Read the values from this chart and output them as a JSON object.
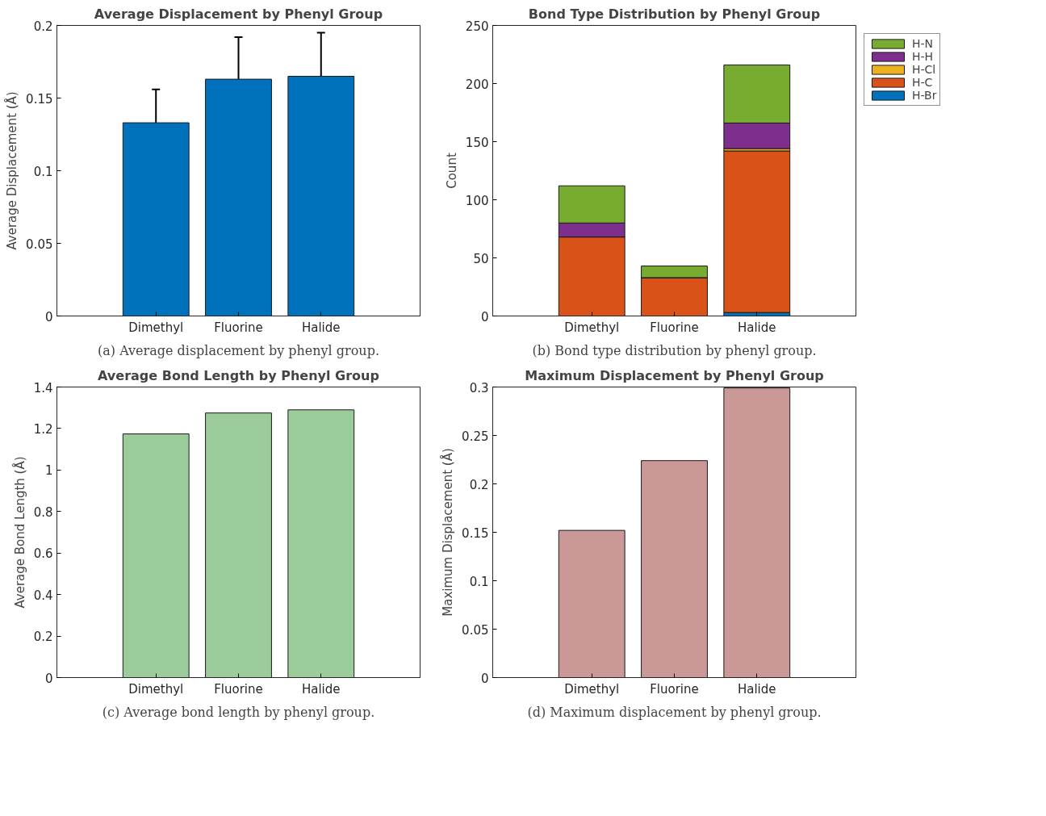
{
  "chart_data": [
    {
      "type": "bar",
      "title": "Average Displacement by Phenyl Group",
      "ylabel": "Average Displacement (Å)",
      "categories": [
        "Dimethyl",
        "Fluorine",
        "Halide"
      ],
      "values": [
        0.133,
        0.163,
        0.165
      ],
      "errors": [
        0.023,
        0.029,
        0.03
      ],
      "color": "#0072bd",
      "ylim": [
        0,
        0.2
      ],
      "yticks": [
        0,
        0.05,
        0.1,
        0.15,
        0.2
      ],
      "annotations": [
        "(a) Average displacement by phenyl group."
      ]
    },
    {
      "type": "bar",
      "title": "Bond Type Distribution by Phenyl Group",
      "ylabel": "Count",
      "categories": [
        "Dimethyl",
        "Fluorine",
        "Halide"
      ],
      "stacked": true,
      "legend": "top right",
      "series": [
        {
          "name": "H-Br",
          "color": "#0072bd",
          "values": [
            0,
            0,
            3
          ]
        },
        {
          "name": "H-C",
          "color": "#d95319",
          "values": [
            68,
            33,
            139
          ]
        },
        {
          "name": "H-Cl",
          "color": "#edb120",
          "values": [
            0,
            0,
            2
          ]
        },
        {
          "name": "H-H",
          "color": "#7e2f8e",
          "values": [
            12,
            0,
            22
          ]
        },
        {
          "name": "H-N",
          "color": "#77ac30",
          "values": [
            32,
            10,
            50
          ]
        }
      ],
      "ylim": [
        0,
        250
      ],
      "yticks": [
        0,
        50,
        100,
        150,
        200,
        250
      ],
      "annotations": [
        "(b) Bond type distribution by phenyl group."
      ]
    },
    {
      "type": "bar",
      "title": "Average Bond Length by Phenyl Group",
      "ylabel": "Average Bond Length (Å)",
      "categories": [
        "Dimethyl",
        "Fluorine",
        "Halide"
      ],
      "values": [
        1.174,
        1.275,
        1.29
      ],
      "color": "#9bcc99",
      "ylim": [
        0,
        1.4
      ],
      "yticks": [
        0,
        0.2,
        0.4,
        0.6,
        0.8,
        1,
        1.2,
        1.4
      ],
      "annotations": [
        "(c) Average bond length by phenyl group."
      ]
    },
    {
      "type": "bar",
      "title": "Maximum Displacement by Phenyl Group",
      "ylabel": "Maximum Displacement (Å)",
      "categories": [
        "Dimethyl",
        "Fluorine",
        "Halide"
      ],
      "values": [
        0.152,
        0.224,
        0.299
      ],
      "color": "#ca9897",
      "ylim": [
        0,
        0.3
      ],
      "yticks": [
        0,
        0.05,
        0.1,
        0.15,
        0.2,
        0.25,
        0.3
      ],
      "annotations": [
        "(d) Maximum displacement by phenyl group."
      ]
    }
  ]
}
